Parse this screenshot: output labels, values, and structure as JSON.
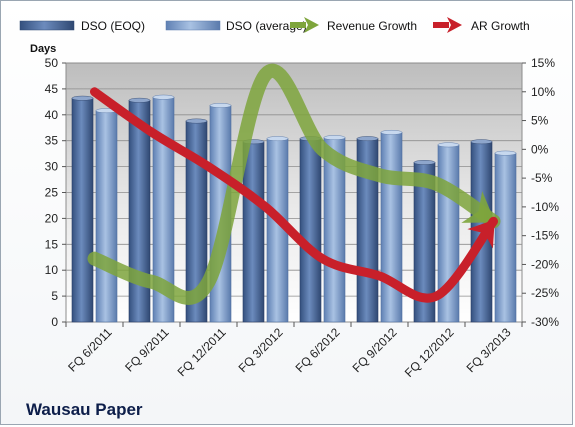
{
  "chart_data": {
    "type": "bar",
    "company": "Wausau Paper",
    "y_axis_title": "Days",
    "categories": [
      "FQ 6/2011",
      "FQ 9/2011",
      "FQ 12/2011",
      "FQ 3/2012",
      "FQ 6/2012",
      "FQ 9/2012",
      "FQ 12/2012",
      "FQ 3/2013"
    ],
    "series": [
      {
        "name": "DSO (EOQ)",
        "kind": "bar",
        "axis": "left",
        "values": [
          43.2,
          42.8,
          38.8,
          34.8,
          35.4,
          35.4,
          30.8,
          34.8
        ]
      },
      {
        "name": "DSO (average)",
        "kind": "bar",
        "axis": "left",
        "values": [
          40.8,
          43.4,
          41.8,
          35.4,
          35.6,
          36.6,
          34.2,
          32.6
        ]
      },
      {
        "name": "Revenue Growth",
        "kind": "line",
        "axis": "right",
        "values": [
          -19,
          -23,
          -23,
          13,
          0,
          -4.5,
          -6,
          -12.5
        ]
      },
      {
        "name": "AR Growth",
        "kind": "line",
        "axis": "right",
        "values": [
          10,
          3,
          -3,
          -10,
          -19,
          -22,
          -25.5,
          -12.5
        ]
      }
    ],
    "left_axis": {
      "min": 0,
      "max": 50,
      "ticks": [
        "0",
        "5",
        "10",
        "15",
        "20",
        "25",
        "30",
        "35",
        "40",
        "45",
        "50"
      ]
    },
    "right_axis": {
      "min": -30,
      "max": 15,
      "ticks": [
        "-30%",
        "-25%",
        "-20%",
        "-15%",
        "-10%",
        "-5%",
        "0%",
        "5%",
        "10%",
        "15%"
      ]
    },
    "colors": {
      "bar_eoq": "#4b6a9c",
      "bar_avg": "#7e9cc8",
      "revenue": "#7ea53c",
      "ar": "#c8202a"
    },
    "grid": true,
    "legend_position": "top"
  }
}
